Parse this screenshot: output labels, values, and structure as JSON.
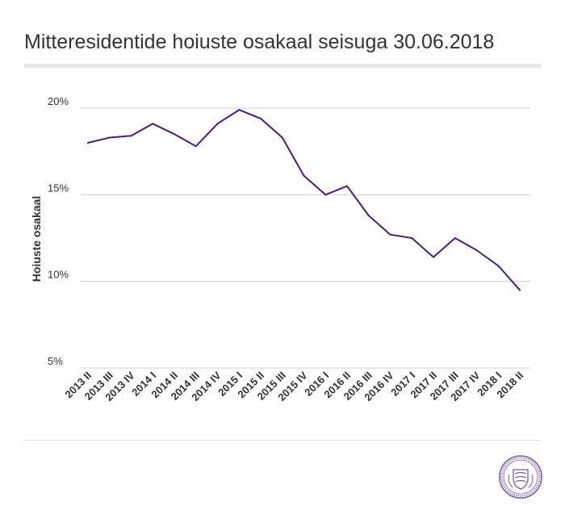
{
  "title": "Mitteresidentide hoiuste osakaal seisuga 30.06.2018",
  "colors": {
    "line": "#4b1d7a",
    "grid": "#cfcfcf",
    "text": "#333333",
    "rule": "#e6e6e6",
    "logo": "#7b5aa6"
  },
  "logo_icon": "eesti-pank-seal-icon",
  "chart_data": {
    "type": "line",
    "title": "Mitteresidentide hoiuste osakaal seisuga 30.06.2018",
    "xlabel": "",
    "ylabel": "Hoiuste osakaal",
    "ylim": [
      5,
      20
    ],
    "yticks": [
      5,
      10,
      15,
      20
    ],
    "ytick_labels": [
      "5%",
      "10%",
      "15%",
      "20%"
    ],
    "grid": true,
    "categories": [
      "2013 II",
      "2013 III",
      "2013 IV",
      "2014 I",
      "2014 II",
      "2014 III",
      "2014 IV",
      "2015 I",
      "2015 II",
      "2015 III",
      "2015 IV",
      "2016 I",
      "2016 II",
      "2016 III",
      "2016 IV",
      "2017 I",
      "2017 II",
      "2017 III",
      "2017 IV",
      "2018 I",
      "2018 II"
    ],
    "series": [
      {
        "values": [
          18.0,
          18.3,
          18.4,
          19.1,
          18.5,
          17.8,
          19.1,
          19.9,
          19.4,
          18.3,
          16.1,
          15.0,
          15.5,
          13.8,
          12.7,
          12.5,
          11.4,
          12.5,
          11.8,
          10.9,
          9.5
        ]
      }
    ]
  }
}
